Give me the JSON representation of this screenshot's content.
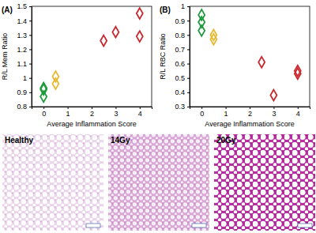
{
  "chart_data": [
    {
      "type": "scatter",
      "title": "(A)",
      "x_label": "Average Inflammation Score",
      "y_label": "R/L Mem Ratio",
      "xlim": [
        -0.5,
        4.5
      ],
      "xticks": [
        0,
        1,
        2,
        3,
        4
      ],
      "ylim": [
        0.8,
        1.5
      ],
      "yticks": [
        0.8,
        0.9,
        1,
        1.1,
        1.2,
        1.3,
        1.4,
        1.5
      ],
      "marker": "diamond",
      "series": [
        {
          "color": "#1f9a3c",
          "x": [
            0,
            0,
            0
          ],
          "values": [
            0.93,
            0.92,
            0.87
          ]
        },
        {
          "color": "#e8b830",
          "x": [
            0.5,
            0.5
          ],
          "values": [
            1.01,
            0.96
          ]
        },
        {
          "color": "#c8282d",
          "x": [
            2.5,
            3,
            4,
            4
          ],
          "values": [
            1.26,
            1.32,
            1.45,
            1.29
          ]
        }
      ]
    },
    {
      "type": "scatter",
      "title": "(B)",
      "x_label": "Average Inflammation Score",
      "y_label": "R/L RBC Ratio",
      "xlim": [
        -0.5,
        4.5
      ],
      "xticks": [
        0,
        1,
        2,
        3,
        4
      ],
      "ylim": [
        0.3,
        1
      ],
      "yticks": [
        0.3,
        0.4,
        0.5,
        0.6,
        0.7,
        0.8,
        0.9,
        1
      ],
      "marker": "diamond",
      "series": [
        {
          "color": "#1f9a3c",
          "x": [
            0,
            0,
            0
          ],
          "values": [
            0.94,
            0.89,
            0.83
          ]
        },
        {
          "color": "#e8b830",
          "x": [
            0.5,
            0.5
          ],
          "values": [
            0.8,
            0.77
          ]
        },
        {
          "color": "#c8282d",
          "x": [
            2.5,
            3,
            4,
            4
          ],
          "values": [
            0.61,
            0.38,
            0.55,
            0.53
          ]
        }
      ]
    }
  ],
  "images": [
    {
      "label": "Healthy"
    },
    {
      "label": "14Gy"
    },
    {
      "label": "20Gy"
    }
  ]
}
